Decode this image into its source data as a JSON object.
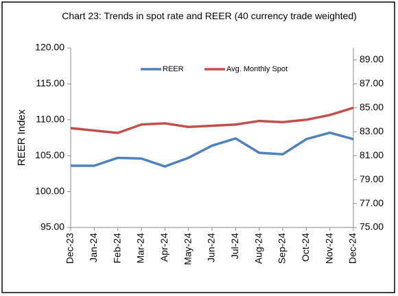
{
  "chart_data": {
    "type": "line",
    "title": "Chart 23: Trends in spot rate and REER (40 currency trade weighted)",
    "y_label": "REER Index",
    "categories": [
      "Dec-23",
      "Jan-24",
      "Feb-24",
      "Mar-24",
      "Apr-24",
      "May-24",
      "Jun-24",
      "Jul-24",
      "Aug-24",
      "Sep-24",
      "Oct-24",
      "Nov-24",
      "Dec-24"
    ],
    "series": [
      {
        "name": "REER",
        "color": "#4f81bd",
        "values": [
          103.6,
          103.6,
          104.7,
          104.6,
          103.5,
          104.7,
          106.4,
          107.4,
          105.4,
          105.2,
          107.3,
          108.2,
          107.3
        ]
      },
      {
        "name": "Avg. Monthly Spot",
        "color": "#c0504d",
        "axis": "y2",
        "values": [
          83.3,
          83.1,
          82.9,
          83.6,
          83.7,
          83.4,
          83.5,
          83.6,
          83.9,
          83.8,
          84.0,
          84.4,
          85.0
        ]
      }
    ],
    "ylim": [
      95,
      120
    ],
    "yticks": [
      {
        "value": 95,
        "label": "95.00"
      },
      {
        "value": 100,
        "label": "100.00"
      },
      {
        "value": 105,
        "label": "105.00"
      },
      {
        "value": 110,
        "label": "110.00"
      },
      {
        "value": 115,
        "label": "115.00"
      },
      {
        "value": 120,
        "label": "120.00"
      }
    ],
    "y2lim": [
      75,
      90
    ],
    "y2ticks": [
      {
        "value": 75,
        "label": "75.00"
      },
      {
        "value": 77,
        "label": "77.00"
      },
      {
        "value": 79,
        "label": "79.00"
      },
      {
        "value": 81,
        "label": "81.00"
      },
      {
        "value": 83,
        "label": "83.00"
      },
      {
        "value": 85,
        "label": "85.00"
      },
      {
        "value": 87,
        "label": "87.00"
      },
      {
        "value": 89,
        "label": "89.00"
      }
    ],
    "legend": "top"
  }
}
